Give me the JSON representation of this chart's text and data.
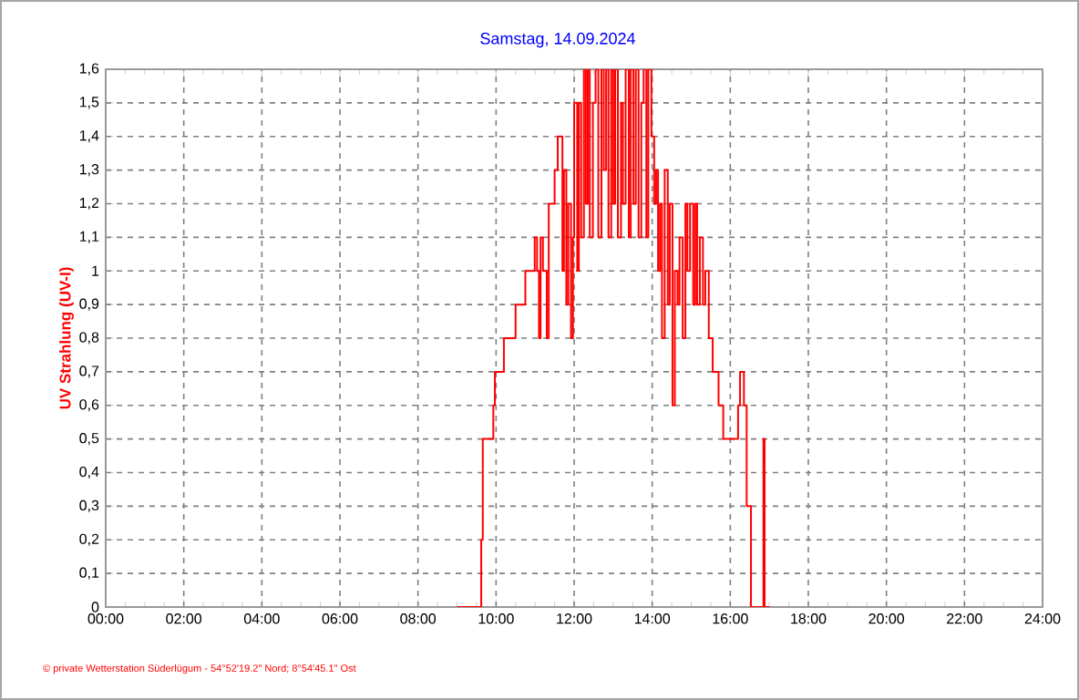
{
  "chart_data": {
    "type": "step",
    "title": "Samstag, 14.09.2024",
    "ylabel": "UV Strahlung  (UV-I)",
    "annotations": [
      "© private Wetterstation Süderlügum  -  54°52'19.2\" Nord; 8°54'45.1\" Ost"
    ],
    "x": [
      9.0,
      9.62,
      9.66,
      9.93,
      9.97,
      10.13,
      10.2,
      10.4,
      10.5,
      10.75,
      10.99,
      11.05,
      11.1,
      11.14,
      11.2,
      11.3,
      11.35,
      11.5,
      11.58,
      11.7,
      11.74,
      11.8,
      11.85,
      11.92,
      11.97,
      12.0,
      12.08,
      12.12,
      12.18,
      12.25,
      12.3,
      12.35,
      12.4,
      12.48,
      12.55,
      12.62,
      12.7,
      12.76,
      12.82,
      12.88,
      12.95,
      13.0,
      13.05,
      13.12,
      13.2,
      13.25,
      13.32,
      13.4,
      13.45,
      13.52,
      13.58,
      13.65,
      13.72,
      13.78,
      13.85,
      13.9,
      13.98,
      14.05,
      14.1,
      14.15,
      14.2,
      14.25,
      14.32,
      14.4,
      14.45,
      14.52,
      14.58,
      14.65,
      14.7,
      14.78,
      14.85,
      14.9,
      14.97,
      15.05,
      15.1,
      15.15,
      15.22,
      15.3,
      15.36,
      15.45,
      15.55,
      15.7,
      15.82,
      16.2,
      16.25,
      16.35,
      16.42,
      16.53,
      16.85,
      16.88,
      17.0
    ],
    "values": [
      0,
      0.2,
      0.5,
      0.6,
      0.7,
      0.7,
      0.8,
      0.8,
      0.9,
      1.0,
      1.1,
      1.0,
      0.8,
      1.1,
      1.0,
      0.8,
      1.2,
      1.3,
      1.4,
      1.0,
      1.3,
      0.9,
      1.2,
      0.8,
      1.1,
      1.5,
      1.0,
      1.5,
      1.1,
      1.6,
      1.2,
      1.6,
      1.1,
      1.5,
      1.6,
      1.1,
      1.6,
      1.3,
      1.6,
      1.1,
      1.6,
      1.2,
      1.6,
      1.1,
      1.5,
      1.2,
      1.6,
      1.1,
      1.6,
      1.2,
      1.6,
      1.1,
      1.5,
      1.6,
      1.1,
      1.6,
      1.4,
      1.2,
      1.3,
      1.0,
      1.2,
      0.8,
      1.3,
      0.9,
      1.2,
      0.6,
      1.0,
      0.9,
      1.1,
      0.8,
      1.2,
      1.0,
      1.2,
      0.9,
      1.2,
      0.9,
      1.1,
      0.9,
      1.0,
      0.8,
      0.7,
      0.6,
      0.5,
      0.6,
      0.7,
      0.6,
      0.3,
      0,
      0.5,
      0,
      0
    ],
    "color": "#ff0000",
    "grid": true,
    "line_style": "solid",
    "marker": "none",
    "xlim": [
      0,
      24
    ],
    "xticks": [
      {
        "value": 0,
        "label": "00:00"
      },
      {
        "value": 2,
        "label": "02:00"
      },
      {
        "value": 4,
        "label": "04:00"
      },
      {
        "value": 6,
        "label": "06:00"
      },
      {
        "value": 8,
        "label": "08:00"
      },
      {
        "value": 10,
        "label": "10:00"
      },
      {
        "value": 12,
        "label": "12:00"
      },
      {
        "value": 14,
        "label": "14:00"
      },
      {
        "value": 16,
        "label": "16:00"
      },
      {
        "value": 18,
        "label": "18:00"
      },
      {
        "value": 20,
        "label": "20:00"
      },
      {
        "value": 22,
        "label": "22:00"
      },
      {
        "value": 24,
        "label": "24:00"
      }
    ],
    "ylim": [
      0,
      1.6
    ],
    "yticks": [
      0,
      {
        "value": 0.1,
        "label": "0,1"
      },
      {
        "value": 0.2,
        "label": "0,2"
      },
      {
        "value": 0.3,
        "label": "0,3"
      },
      {
        "value": 0.4,
        "label": "0,4"
      },
      {
        "value": 0.5,
        "label": "0,5"
      },
      {
        "value": 0.6,
        "label": "0,6"
      },
      {
        "value": 0.7,
        "label": "0,7"
      },
      {
        "value": 0.8,
        "label": "0,8"
      },
      {
        "value": 0.9,
        "label": "0,9"
      },
      1,
      {
        "value": 1.1,
        "label": "1,1"
      },
      {
        "value": 1.2,
        "label": "1,2"
      },
      {
        "value": 1.3,
        "label": "1,3"
      },
      {
        "value": 1.4,
        "label": "1,4"
      },
      {
        "value": 1.5,
        "label": "1,5"
      },
      {
        "value": 1.6,
        "label": "1,6"
      }
    ]
  }
}
